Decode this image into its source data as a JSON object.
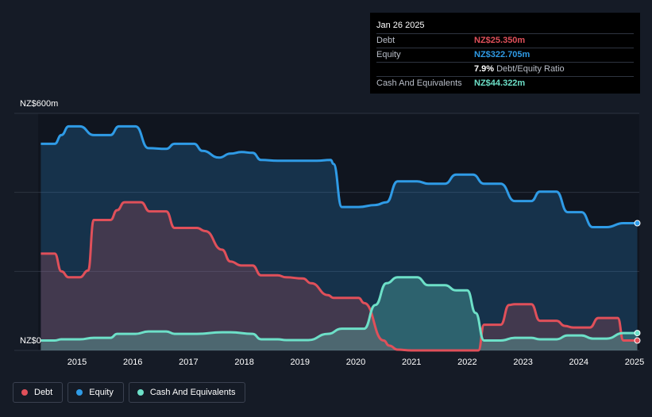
{
  "tooltip": {
    "date": "Jan 26 2025",
    "debt_label": "Debt",
    "debt_value": "NZ$25.350m",
    "equity_label": "Equity",
    "equity_value": "NZ$322.705m",
    "ratio_value": "7.9%",
    "ratio_label": "Debt/Equity Ratio",
    "cash_label": "Cash And Equivalents",
    "cash_value": "NZ$44.322m"
  },
  "colors": {
    "debt": "#e0505a",
    "equity": "#2f9be6",
    "cash": "#6de0c8",
    "background": "#151b26"
  },
  "legend": [
    {
      "label": "Debt",
      "color": "#e0505a"
    },
    {
      "label": "Equity",
      "color": "#2f9be6"
    },
    {
      "label": "Cash And Equivalents",
      "color": "#6de0c8"
    }
  ],
  "chart_data": {
    "type": "area",
    "y_top_label": "NZ$600m",
    "y_bottom_label": "NZ$0",
    "ylim": [
      0,
      600
    ],
    "xlim": [
      2014.35,
      2025.1
    ],
    "x_ticks": [
      "2015",
      "2016",
      "2017",
      "2018",
      "2019",
      "2020",
      "2021",
      "2022",
      "2023",
      "2024",
      "2025"
    ],
    "x_tick_values": [
      2015,
      2016,
      2017,
      2018,
      2019,
      2020,
      2021,
      2022,
      2023,
      2024,
      2025
    ],
    "grid": true,
    "legend_position": "bottom-left",
    "series": [
      {
        "name": "Equity",
        "x": [
          2014.35,
          2014.6,
          2014.72,
          2014.85,
          2015.05,
          2015.3,
          2015.6,
          2015.75,
          2016.05,
          2016.28,
          2016.6,
          2016.75,
          2017.1,
          2017.25,
          2017.55,
          2017.75,
          2017.95,
          2018.15,
          2018.3,
          2018.6,
          2019.0,
          2019.3,
          2019.55,
          2019.6,
          2019.75,
          2020.05,
          2020.35,
          2020.55,
          2020.75,
          2021.1,
          2021.3,
          2021.6,
          2021.8,
          2022.1,
          2022.3,
          2022.6,
          2022.85,
          2023.15,
          2023.3,
          2023.6,
          2023.8,
          2024.05,
          2024.25,
          2024.5,
          2024.8,
          2025.05
        ],
        "values": [
          523,
          523,
          545,
          567,
          567,
          545,
          545,
          567,
          567,
          512,
          510,
          523,
          523,
          505,
          488,
          498,
          502,
          500,
          482,
          480,
          480,
          480,
          482,
          472,
          363,
          363,
          368,
          375,
          428,
          428,
          422,
          422,
          445,
          445,
          422,
          422,
          378,
          378,
          402,
          402,
          350,
          350,
          312,
          312,
          322,
          322
        ]
      },
      {
        "name": "Debt",
        "x": [
          2014.35,
          2014.6,
          2014.72,
          2014.85,
          2015.05,
          2015.2,
          2015.3,
          2015.6,
          2015.72,
          2015.85,
          2016.15,
          2016.3,
          2016.6,
          2016.75,
          2017.15,
          2017.3,
          2017.6,
          2017.75,
          2017.95,
          2018.15,
          2018.3,
          2018.6,
          2018.75,
          2019.05,
          2019.2,
          2019.5,
          2019.6,
          2020.05,
          2020.15,
          2020.5,
          2020.6,
          2020.75,
          2021.0,
          2022.0,
          2022.2,
          2022.3,
          2022.6,
          2022.75,
          2022.85,
          2023.15,
          2023.3,
          2023.6,
          2023.75,
          2023.9,
          2024.2,
          2024.35,
          2024.7,
          2024.8,
          2024.95,
          2025.05
        ],
        "values": [
          245,
          245,
          200,
          185,
          185,
          202,
          330,
          330,
          355,
          375,
          375,
          352,
          352,
          310,
          310,
          302,
          255,
          225,
          215,
          215,
          190,
          190,
          185,
          182,
          170,
          140,
          133,
          133,
          120,
          25,
          12,
          2,
          0,
          0,
          0,
          65,
          65,
          115,
          117,
          117,
          75,
          75,
          62,
          58,
          58,
          82,
          82,
          25,
          25,
          25
        ]
      },
      {
        "name": "Cash And Equivalents",
        "x": [
          2014.35,
          2014.6,
          2014.72,
          2015.05,
          2015.3,
          2015.6,
          2015.72,
          2016.05,
          2016.28,
          2016.6,
          2016.75,
          2017.15,
          2017.6,
          2017.75,
          2018.15,
          2018.3,
          2018.6,
          2018.75,
          2019.15,
          2019.5,
          2019.75,
          2020.15,
          2020.35,
          2020.55,
          2020.75,
          2021.1,
          2021.3,
          2021.6,
          2021.8,
          2022.0,
          2022.15,
          2022.3,
          2022.6,
          2022.85,
          2023.15,
          2023.3,
          2023.6,
          2023.8,
          2024.05,
          2024.25,
          2024.5,
          2024.8,
          2025.05
        ],
        "values": [
          25,
          25,
          28,
          28,
          32,
          32,
          42,
          42,
          48,
          48,
          42,
          42,
          46,
          46,
          42,
          28,
          28,
          26,
          26,
          42,
          55,
          55,
          115,
          170,
          185,
          185,
          165,
          165,
          152,
          152,
          95,
          25,
          25,
          32,
          32,
          28,
          28,
          38,
          38,
          30,
          30,
          44,
          44
        ]
      }
    ]
  }
}
